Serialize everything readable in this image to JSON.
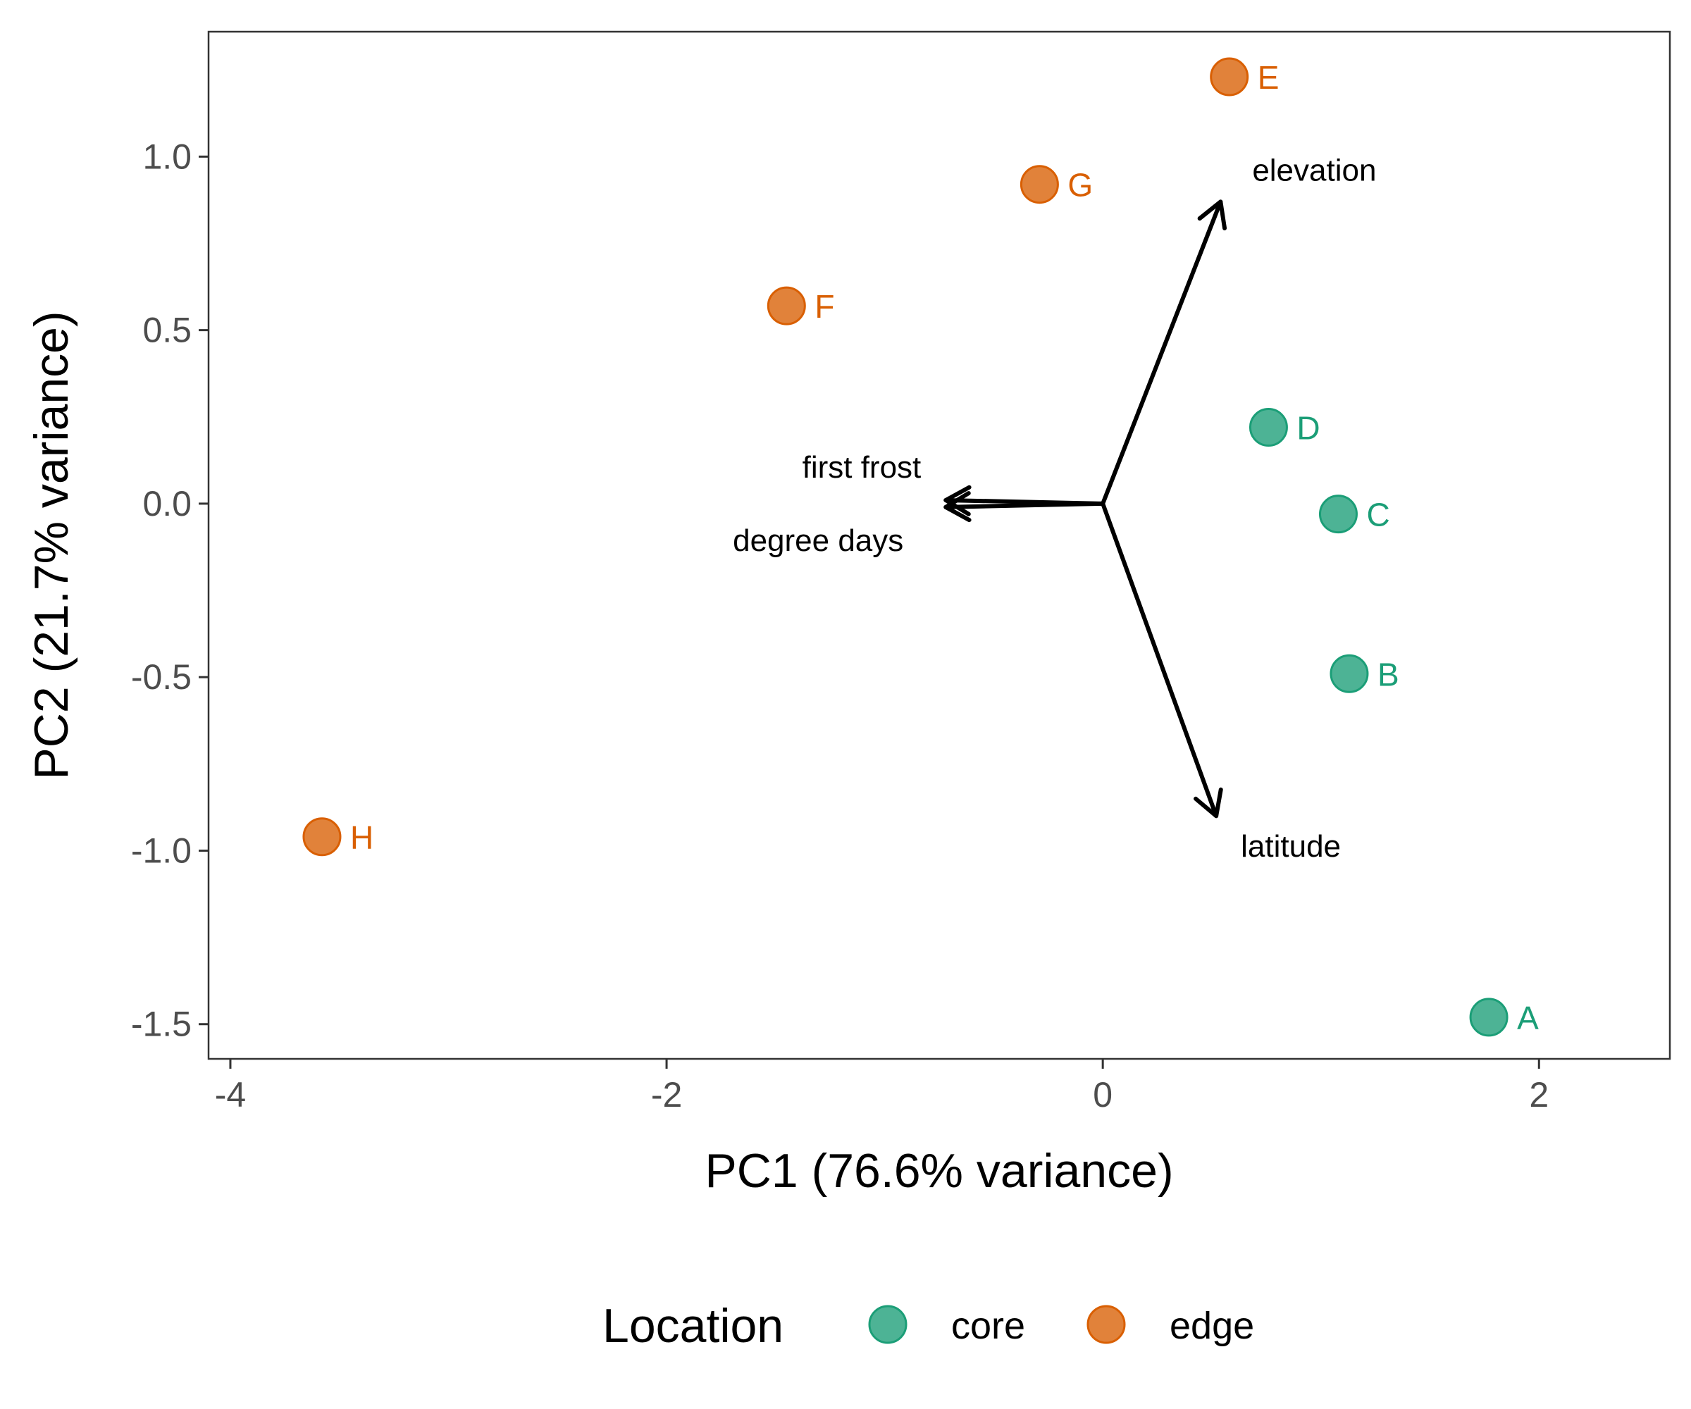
{
  "chart_data": {
    "type": "scatter",
    "subtype": "pca-biplot",
    "title": "",
    "xlabel": "PC1 (76.6% variance)",
    "ylabel": "PC2 (21.7% variance)",
    "xlim": [
      -4.1,
      2.6
    ],
    "ylim": [
      -1.6,
      1.36
    ],
    "x_ticks": [
      -4,
      -2,
      0,
      2
    ],
    "x_tick_labels": [
      "-4",
      "-2",
      "0",
      "2"
    ],
    "y_ticks": [
      1.0,
      0.5,
      0.0,
      -0.5,
      -1.0,
      -1.5
    ],
    "y_tick_labels": [
      "1.0",
      "0.5",
      "0.0",
      "-0.5",
      "-1.0",
      "-1.5"
    ],
    "grid": false,
    "legend": {
      "title": "Location",
      "position": "bottom",
      "entries": [
        {
          "label": "core",
          "color": "#1b9e77"
        },
        {
          "label": "edge",
          "color": "#d95f02"
        }
      ]
    },
    "points": [
      {
        "label": "A",
        "x": 1.77,
        "y": -1.48,
        "group": "core"
      },
      {
        "label": "B",
        "x": 1.13,
        "y": -0.49,
        "group": "core"
      },
      {
        "label": "C",
        "x": 1.08,
        "y": -0.03,
        "group": "core"
      },
      {
        "label": "D",
        "x": 0.76,
        "y": 0.22,
        "group": "core"
      },
      {
        "label": "E",
        "x": 0.58,
        "y": 1.23,
        "group": "edge"
      },
      {
        "label": "F",
        "x": -1.45,
        "y": 0.57,
        "group": "edge"
      },
      {
        "label": "G",
        "x": -0.29,
        "y": 0.92,
        "group": "edge"
      },
      {
        "label": "H",
        "x": -3.58,
        "y": -0.96,
        "group": "edge"
      }
    ],
    "vectors": [
      {
        "label": "elevation",
        "x": 0.54,
        "y": 0.87
      },
      {
        "label": "latitude",
        "x": 0.52,
        "y": -0.9
      },
      {
        "label": "first frost",
        "x": -0.72,
        "y": 0.01
      },
      {
        "label": "degree days",
        "x": -0.72,
        "y": -0.01
      }
    ]
  }
}
